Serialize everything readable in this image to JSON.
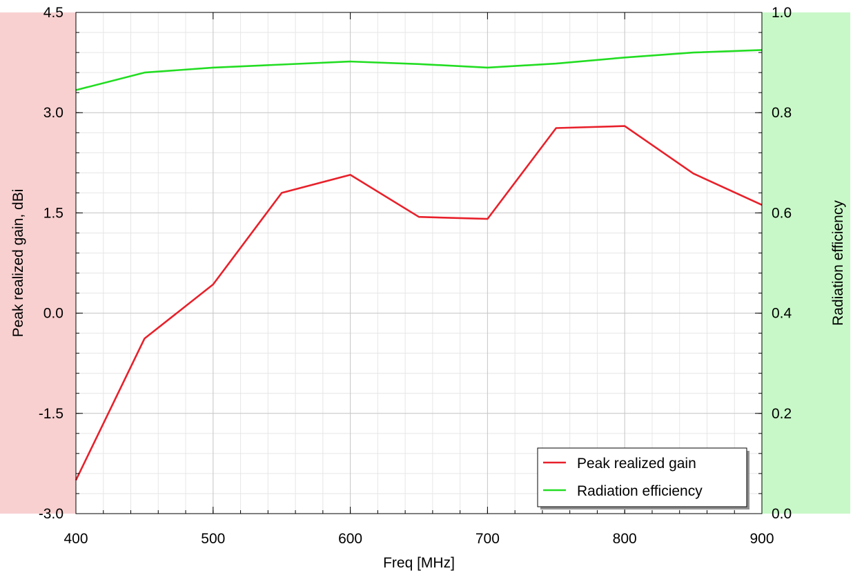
{
  "chart_data": {
    "type": "line",
    "xlabel": "Freq [MHz]",
    "ylabel_left": "Peak realized gain, dBi",
    "ylabel_right": "Radiation efficiency",
    "xlim": [
      400,
      900
    ],
    "ylim_left": [
      -3.0,
      4.5
    ],
    "ylim_right": [
      0.0,
      1.0
    ],
    "x_ticks": [
      "400",
      "500",
      "600",
      "700",
      "800",
      "900"
    ],
    "y_ticks_left": [
      "-3.0",
      "-1.5",
      "0.0",
      "1.5",
      "3.0",
      "4.5"
    ],
    "y_ticks_right": [
      "0.0",
      "0.2",
      "0.4",
      "0.6",
      "0.8",
      "1.0"
    ],
    "grid": true,
    "legend_position": "bottom-right",
    "left_axis_band_color": "#f8d0d0",
    "right_axis_band_color": "#c8f8c8",
    "series": [
      {
        "name": "Peak realized gain",
        "axis": "left",
        "color": "#e8202a",
        "x": [
          400,
          450,
          500,
          550,
          600,
          650,
          700,
          750,
          800,
          850,
          900
        ],
        "y": [
          -2.5,
          -0.38,
          0.43,
          1.8,
          2.07,
          1.44,
          1.41,
          2.77,
          2.8,
          2.09,
          1.62
        ]
      },
      {
        "name": "Radiation efficiency",
        "axis": "right",
        "color": "#22dd22",
        "x": [
          400,
          450,
          500,
          550,
          600,
          650,
          700,
          750,
          800,
          850,
          900
        ],
        "y": [
          0.845,
          0.88,
          0.89,
          0.896,
          0.902,
          0.897,
          0.89,
          0.898,
          0.91,
          0.92,
          0.925
        ]
      }
    ]
  }
}
